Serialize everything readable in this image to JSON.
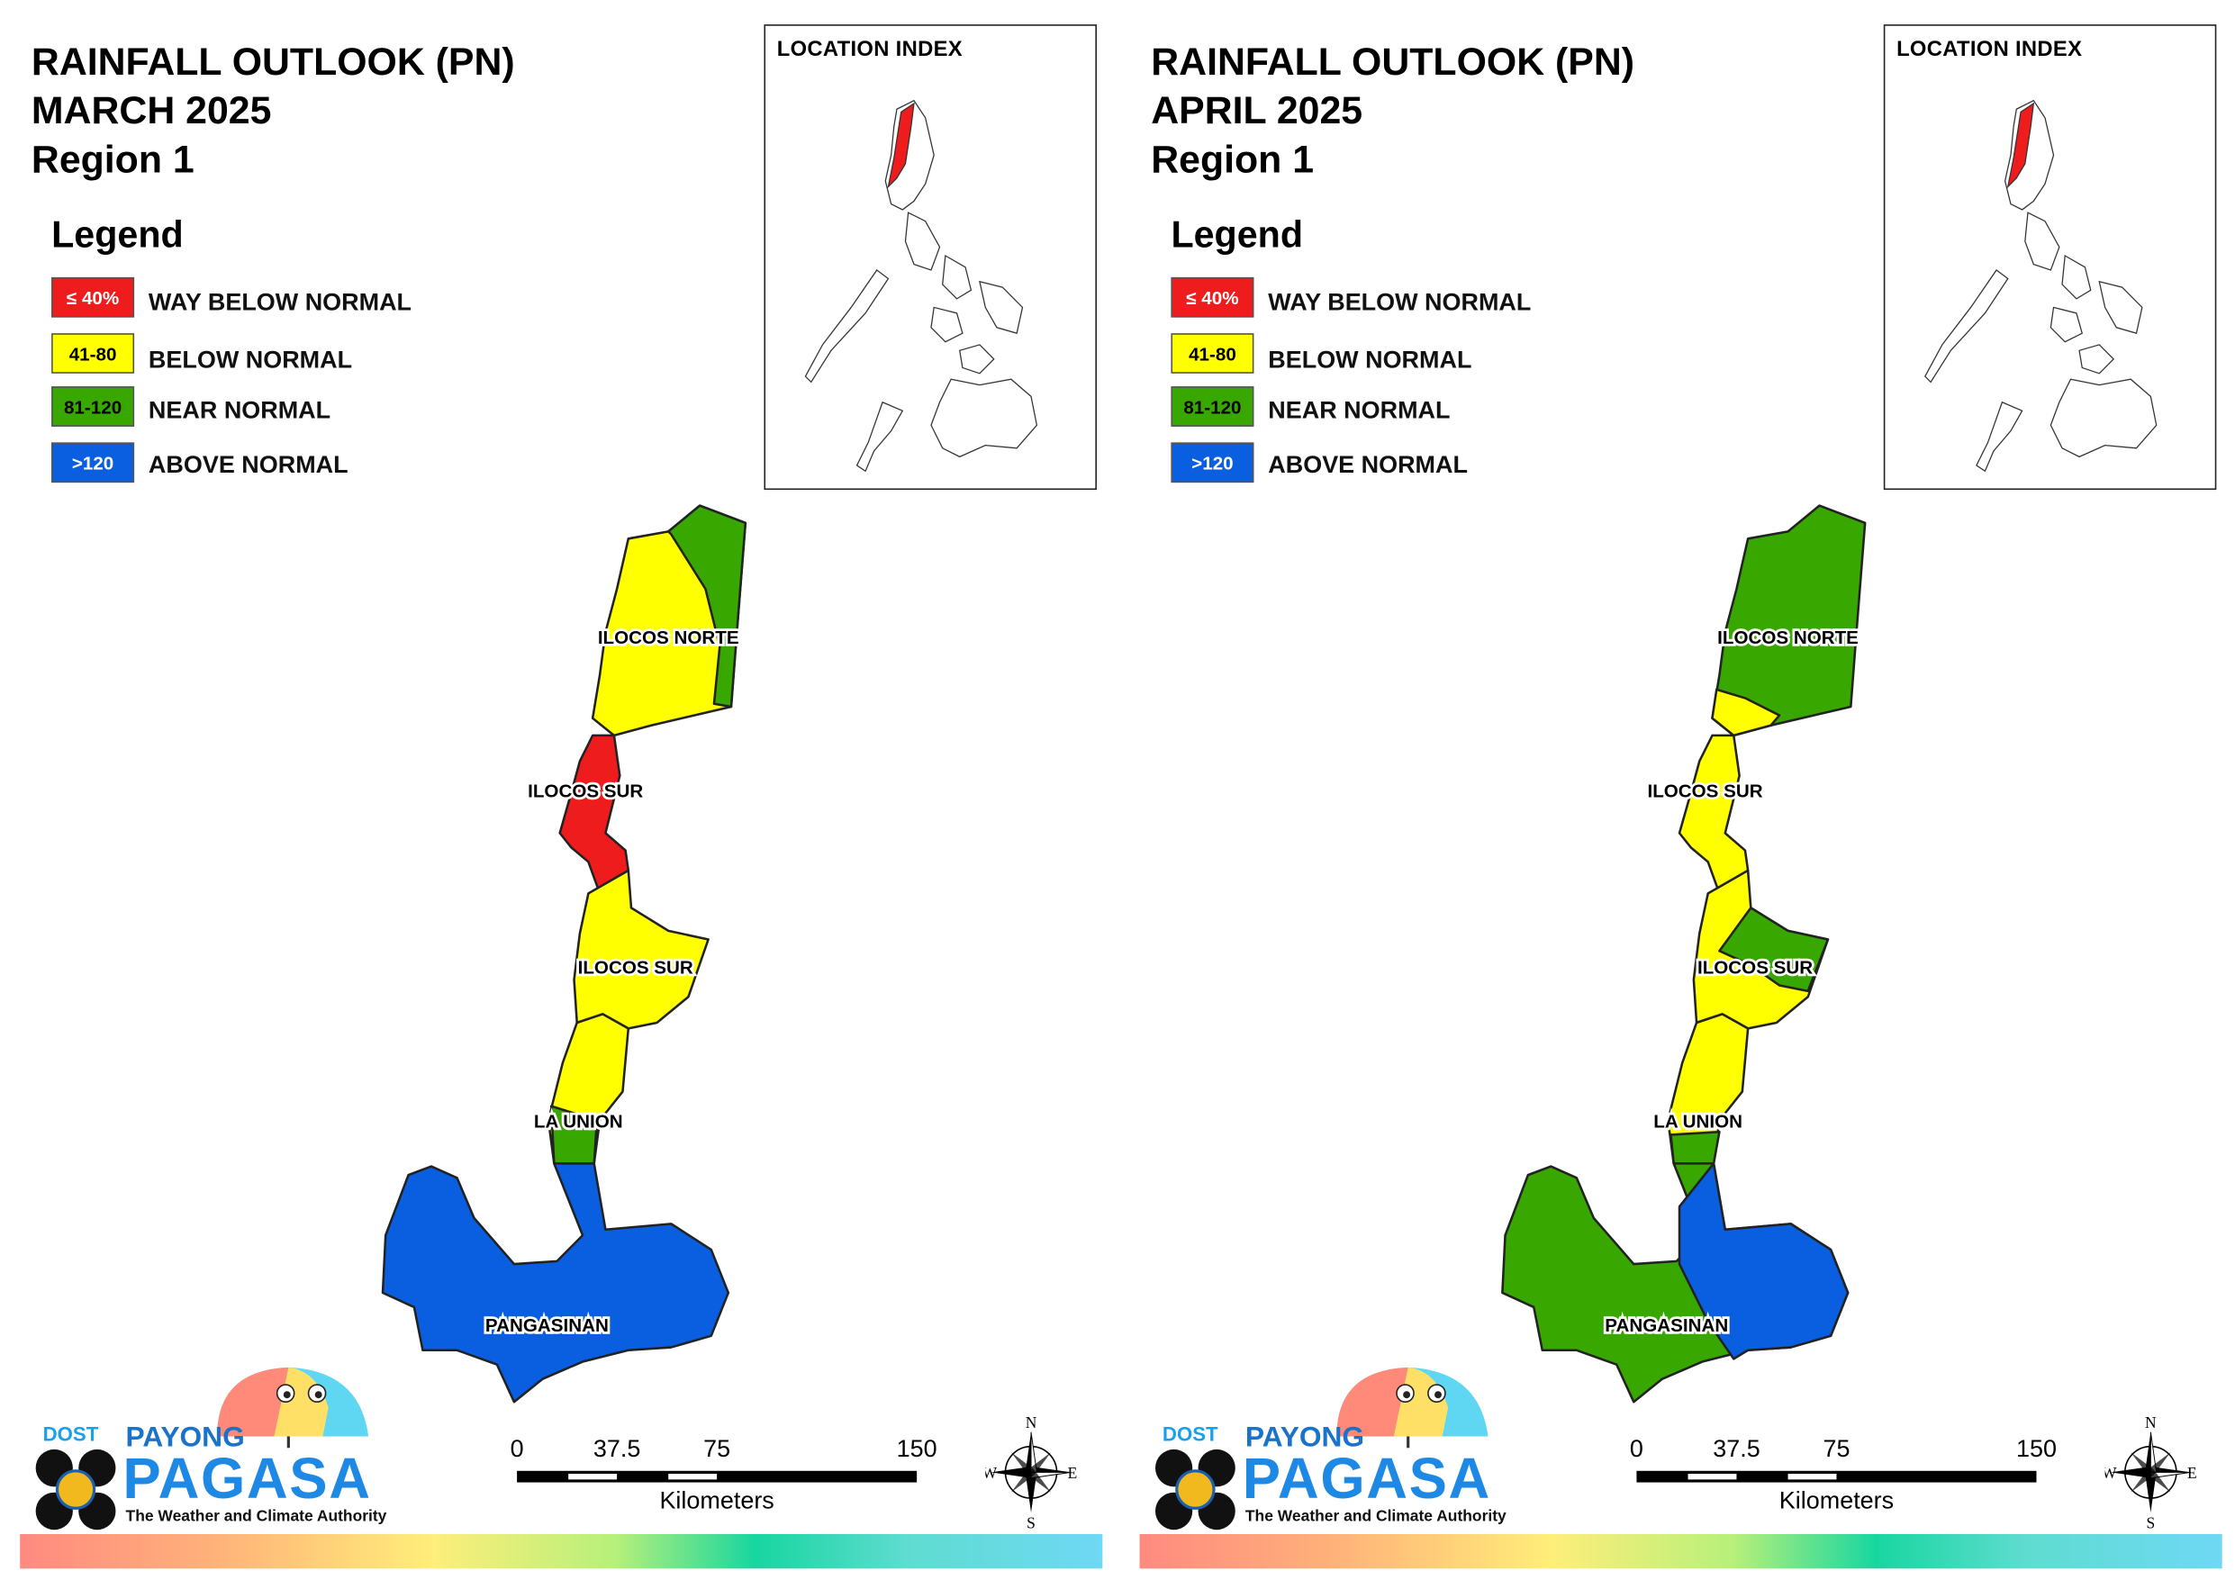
{
  "legend_title": "Legend",
  "legend": [
    {
      "range": "≤ 40%",
      "label": "WAY BELOW NORMAL",
      "color": "#ee1c1c",
      "text_color": "#ffffff"
    },
    {
      "range": "41-80",
      "label": "BELOW NORMAL",
      "color": "#ffff00",
      "text_color": "#000000"
    },
    {
      "range": "81-120",
      "label": "NEAR NORMAL",
      "color": "#38a800",
      "text_color": "#000000"
    },
    {
      "range": ">120",
      "label": "ABOVE NORMAL",
      "color": "#0a5ee0",
      "text_color": "#ffffff"
    }
  ],
  "inset_title": "LOCATION INDEX",
  "scale": {
    "ticks": [
      "0",
      "37.5",
      "75",
      "150"
    ],
    "unit": "Kilometers"
  },
  "compass": {
    "n": "N",
    "e": "E",
    "s": "S",
    "w": "W"
  },
  "logo": {
    "dost": "DOST",
    "payong": "PAYONG",
    "pagasa": "PAGASA",
    "tagline": "The Weather and Climate Authority"
  },
  "panels": [
    {
      "title_lines": [
        "RAINFALL OUTLOOK (PN)",
        "MARCH 2025",
        "Region 1"
      ],
      "provinces": [
        {
          "name": "ILOCOS NORTE",
          "category": "BELOW NORMAL",
          "secondary": "NEAR NORMAL"
        },
        {
          "name": "ILOCOS SUR",
          "category": "WAY BELOW NORMAL",
          "secondary": ""
        },
        {
          "name": "ILOCOS SUR",
          "category": "BELOW NORMAL",
          "secondary": ""
        },
        {
          "name": "LA UNION",
          "category": "BELOW NORMAL",
          "secondary": "NEAR NORMAL"
        },
        {
          "name": "PANGASINAN",
          "category": "ABOVE NORMAL",
          "secondary": ""
        }
      ]
    },
    {
      "title_lines": [
        "RAINFALL OUTLOOK (PN)",
        "APRIL 2025",
        "Region 1"
      ],
      "provinces": [
        {
          "name": "ILOCOS NORTE",
          "category": "NEAR NORMAL",
          "secondary": "BELOW NORMAL"
        },
        {
          "name": "ILOCOS SUR",
          "category": "BELOW NORMAL",
          "secondary": ""
        },
        {
          "name": "ILOCOS SUR",
          "category": "BELOW NORMAL",
          "secondary": "NEAR NORMAL"
        },
        {
          "name": "LA UNION",
          "category": "BELOW NORMAL",
          "secondary": "NEAR NORMAL"
        },
        {
          "name": "PANGASINAN",
          "category": "NEAR NORMAL",
          "secondary": "ABOVE NORMAL"
        }
      ]
    }
  ]
}
